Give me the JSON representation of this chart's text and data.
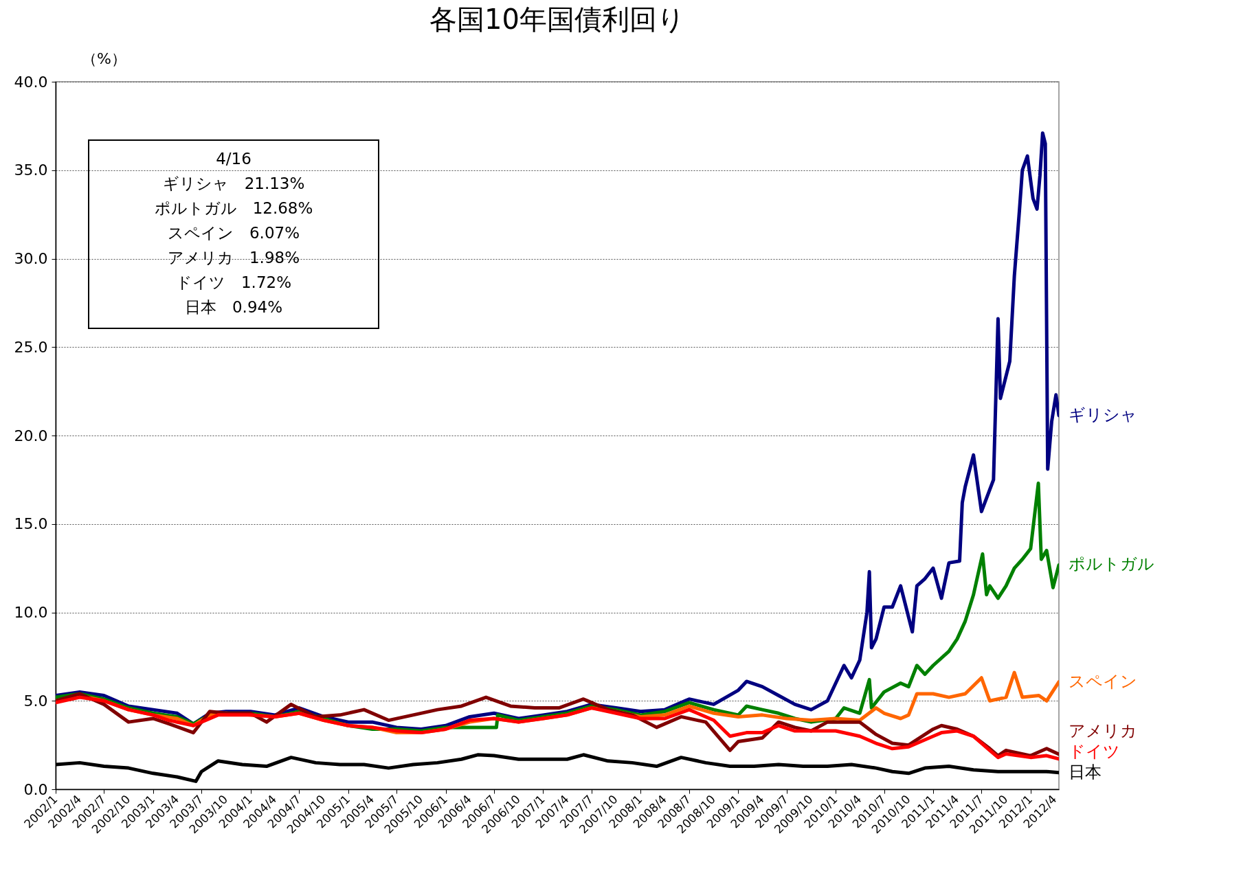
{
  "chart_data": {
    "type": "line",
    "title": "各国10年国債利回り",
    "ylabel": "（%）",
    "xlim": [
      "2002-01-01",
      "2012-04-16"
    ],
    "xticks": [
      {
        "value": "2002-01",
        "label": "2002/1"
      },
      {
        "value": "2002-04",
        "label": "2002/4"
      },
      {
        "value": "2002-07",
        "label": "2002/7"
      },
      {
        "value": "2002-10",
        "label": "2002/10"
      },
      {
        "value": "2003-01",
        "label": "2003/1"
      },
      {
        "value": "2003-04",
        "label": "2003/4"
      },
      {
        "value": "2003-07",
        "label": "2003/7"
      },
      {
        "value": "2003-10",
        "label": "2003/10"
      },
      {
        "value": "2004-01",
        "label": "2004/1"
      },
      {
        "value": "2004-04",
        "label": "2004/4"
      },
      {
        "value": "2004-07",
        "label": "2004/7"
      },
      {
        "value": "2004-10",
        "label": "2004/10"
      },
      {
        "value": "2005-01",
        "label": "2005/1"
      },
      {
        "value": "2005-04",
        "label": "2005/4"
      },
      {
        "value": "2005-07",
        "label": "2005/7"
      },
      {
        "value": "2005-10",
        "label": "2005/10"
      },
      {
        "value": "2006-01",
        "label": "2006/1"
      },
      {
        "value": "2006-04",
        "label": "2006/4"
      },
      {
        "value": "2006-07",
        "label": "2006/7"
      },
      {
        "value": "2006-10",
        "label": "2006/10"
      },
      {
        "value": "2007-01",
        "label": "2007/1"
      },
      {
        "value": "2007-04",
        "label": "2007/4"
      },
      {
        "value": "2007-07",
        "label": "2007/7"
      },
      {
        "value": "2007-10",
        "label": "2007/10"
      },
      {
        "value": "2008-01",
        "label": "2008/1"
      },
      {
        "value": "2008-04",
        "label": "2008/4"
      },
      {
        "value": "2008-07",
        "label": "2008/7"
      },
      {
        "value": "2008-10",
        "label": "2008/10"
      },
      {
        "value": "2009-01",
        "label": "2009/1"
      },
      {
        "value": "2009-04",
        "label": "2009/4"
      },
      {
        "value": "2009-07",
        "label": "2009/7"
      },
      {
        "value": "2009-10",
        "label": "2009/10"
      },
      {
        "value": "2010-01",
        "label": "2010/1"
      },
      {
        "value": "2010-04",
        "label": "2010/4"
      },
      {
        "value": "2010-07",
        "label": "2010/7"
      },
      {
        "value": "2010-10",
        "label": "2010/10"
      },
      {
        "value": "2011-01",
        "label": "2011/1"
      },
      {
        "value": "2011-04",
        "label": "2011/4"
      },
      {
        "value": "2011-07",
        "label": "2011/7"
      },
      {
        "value": "2011-10",
        "label": "2011/10"
      },
      {
        "value": "2012-01",
        "label": "2012/1"
      },
      {
        "value": "2012-04",
        "label": "2012/4"
      }
    ],
    "ylim": [
      0,
      40
    ],
    "yticks": [
      {
        "value": 0,
        "label": "0.0"
      },
      {
        "value": 5,
        "label": "5.0"
      },
      {
        "value": 10,
        "label": "10.0"
      },
      {
        "value": 15,
        "label": "15.0"
      },
      {
        "value": 20,
        "label": "20.0"
      },
      {
        "value": 25,
        "label": "25.0"
      },
      {
        "value": 30,
        "label": "30.0"
      },
      {
        "value": 35,
        "label": "35.0"
      },
      {
        "value": 40,
        "label": "40.0"
      }
    ],
    "grid": "y",
    "annotations": [
      "4/16",
      "ギリシャ　21.13%",
      "ポルトガル　12.68%",
      "スペイン　6.07%",
      "アメリカ　1.98%",
      "ドイツ　1.72%",
      "日本　0.94%"
    ],
    "series": [
      {
        "name": "ギリシャ",
        "color": "#000080",
        "x": [
          "2002-01",
          "2002-04",
          "2002-07",
          "2002-10",
          "2003-01",
          "2003-04",
          "2003-06",
          "2003-08",
          "2003-10",
          "2004-01",
          "2004-04",
          "2004-07",
          "2004-10",
          "2005-01",
          "2005-04",
          "2005-07",
          "2005-10",
          "2006-01",
          "2006-04",
          "2006-07",
          "2006-10",
          "2007-01",
          "2007-04",
          "2007-07",
          "2007-10",
          "2008-01",
          "2008-04",
          "2008-07",
          "2008-10",
          "2009-01",
          "2009-02",
          "2009-04",
          "2009-06",
          "2009-08",
          "2009-10",
          "2009-12",
          "2010-01",
          "2010-02",
          "2010-03",
          "2010-04",
          "2010-04-28",
          "2010-05-07",
          "2010-05-15",
          "2010-06",
          "2010-07",
          "2010-08",
          "2010-09",
          "2010-10-15",
          "2010-11",
          "2010-12",
          "2011-01",
          "2011-02",
          "2011-03",
          "2011-04-10",
          "2011-04-20",
          "2011-05",
          "2011-06",
          "2011-07",
          "2011-08-15",
          "2011-09",
          "2011-09-10",
          "2011-10-15",
          "2011-11",
          "2011-11-20",
          "2011-12",
          "2011-12-20",
          "2012-01-10",
          "2012-01-25",
          "2012-02-05",
          "2012-02-15",
          "2012-02-25",
          "2012-03-05",
          "2012-03-20",
          "2012-04-05",
          "2012-04-16"
        ],
        "values": [
          5.3,
          5.5,
          5.3,
          4.7,
          4.5,
          4.3,
          3.7,
          4.3,
          4.4,
          4.4,
          4.2,
          4.6,
          4.1,
          3.8,
          3.8,
          3.5,
          3.4,
          3.6,
          4.1,
          4.3,
          4.0,
          4.2,
          4.4,
          4.8,
          4.6,
          4.4,
          4.5,
          5.1,
          4.8,
          5.6,
          6.1,
          5.8,
          5.3,
          4.8,
          4.5,
          5.0,
          6.0,
          7.0,
          6.3,
          7.3,
          10.0,
          12.3,
          8.0,
          8.5,
          10.3,
          10.3,
          11.5,
          8.9,
          11.5,
          11.9,
          12.5,
          10.8,
          12.8,
          12.9,
          16.2,
          17.1,
          18.9,
          15.7,
          17.5,
          26.6,
          22.1,
          24.2,
          29.0,
          32.7,
          35.0,
          35.8,
          33.4,
          32.8,
          34.7,
          37.1,
          36.5,
          18.1,
          20.8,
          22.3,
          21.13
        ]
      },
      {
        "name": "ポルトガル",
        "color": "#008000",
        "x": [
          "2002-01",
          "2002-04",
          "2002-07",
          "2002-10",
          "2003-01",
          "2003-04",
          "2003-06",
          "2003-08",
          "2003-10",
          "2004-01",
          "2004-04",
          "2004-07",
          "2004-10",
          "2005-01",
          "2005-04",
          "2005-07",
          "2005-10",
          "2006-01",
          "2006-04",
          "2006-07-10",
          "2006-07-15",
          "2006-10",
          "2007-01",
          "2007-04",
          "2007-07",
          "2007-10",
          "2008-01",
          "2008-04",
          "2008-07",
          "2008-10",
          "2009-01",
          "2009-02",
          "2009-04",
          "2009-06",
          "2009-08",
          "2009-10",
          "2010-01",
          "2010-02",
          "2010-04",
          "2010-05-07",
          "2010-05-15",
          "2010-07",
          "2010-09",
          "2010-10",
          "2010-11",
          "2010-12",
          "2011-01",
          "2011-03",
          "2011-04",
          "2011-05",
          "2011-06",
          "2011-07-05",
          "2011-07-20",
          "2011-08",
          "2011-09",
          "2011-10",
          "2011-11",
          "2011-12",
          "2012-01",
          "2012-01-30",
          "2012-02-10",
          "2012-03",
          "2012-03-25",
          "2012-04-16"
        ],
        "values": [
          5.2,
          5.4,
          5.1,
          4.6,
          4.3,
          4.1,
          3.7,
          4.2,
          4.3,
          4.3,
          4.1,
          4.4,
          4.0,
          3.6,
          3.4,
          3.4,
          3.3,
          3.5,
          3.5,
          3.5,
          4.2,
          3.9,
          4.1,
          4.3,
          4.7,
          4.5,
          4.2,
          4.4,
          4.9,
          4.5,
          4.2,
          4.7,
          4.5,
          4.3,
          4.0,
          3.8,
          4.0,
          4.6,
          4.3,
          6.2,
          4.6,
          5.5,
          6.0,
          5.8,
          7.0,
          6.5,
          7.0,
          7.8,
          8.5,
          9.5,
          11.0,
          13.3,
          11.0,
          11.5,
          10.8,
          11.5,
          12.5,
          13.0,
          13.6,
          17.3,
          13.0,
          13.5,
          11.4,
          12.68
        ]
      },
      {
        "name": "スペイン",
        "color": "#ff6600",
        "x": [
          "2002-01",
          "2002-04",
          "2002-07",
          "2002-10",
          "2003-01",
          "2003-04",
          "2003-06",
          "2003-08",
          "2003-10",
          "2004-01",
          "2004-04",
          "2004-07",
          "2004-10",
          "2005-01",
          "2005-04",
          "2005-07",
          "2005-10",
          "2006-01",
          "2006-04",
          "2006-07",
          "2006-10",
          "2007-01",
          "2007-04",
          "2007-07",
          "2007-10",
          "2008-01",
          "2008-04",
          "2008-07",
          "2008-10",
          "2009-01",
          "2009-04",
          "2009-07",
          "2009-10",
          "2010-01",
          "2010-04",
          "2010-06",
          "2010-07",
          "2010-09",
          "2010-10",
          "2010-11",
          "2011-01",
          "2011-03",
          "2011-05",
          "2011-07",
          "2011-08",
          "2011-10",
          "2011-11",
          "2011-12",
          "2012-02",
          "2012-03",
          "2012-04-16"
        ],
        "values": [
          5.0,
          5.3,
          5.0,
          4.5,
          4.2,
          4.0,
          3.6,
          4.2,
          4.3,
          4.2,
          4.1,
          4.3,
          3.9,
          3.6,
          3.5,
          3.2,
          3.2,
          3.4,
          3.8,
          4.0,
          3.8,
          4.0,
          4.2,
          4.6,
          4.4,
          4.1,
          4.2,
          4.7,
          4.3,
          4.1,
          4.2,
          4.0,
          3.9,
          4.0,
          3.9,
          4.6,
          4.3,
          4.0,
          4.2,
          5.4,
          5.4,
          5.2,
          5.4,
          6.3,
          5.0,
          5.2,
          6.6,
          5.2,
          5.3,
          5.0,
          6.07
        ]
      },
      {
        "name": "アメリカ",
        "color": "#800000",
        "x": [
          "2002-01",
          "2002-04",
          "2002-07",
          "2002-10",
          "2003-01",
          "2003-03",
          "2003-06",
          "2003-08",
          "2003-10",
          "2004-01",
          "2004-03",
          "2004-06",
          "2004-09",
          "2004-12",
          "2005-03",
          "2005-06",
          "2005-09",
          "2005-12",
          "2006-03",
          "2006-06",
          "2006-09",
          "2006-12",
          "2007-03",
          "2007-06",
          "2007-09",
          "2007-12",
          "2008-03",
          "2008-06",
          "2008-09",
          "2008-12",
          "2009-01",
          "2009-04",
          "2009-06",
          "2009-08",
          "2009-10",
          "2009-12",
          "2010-04",
          "2010-06",
          "2010-08",
          "2010-10",
          "2011-01",
          "2011-02",
          "2011-04",
          "2011-06",
          "2011-08",
          "2011-09",
          "2011-10",
          "2012-01",
          "2012-03",
          "2012-04-16"
        ],
        "values": [
          5.0,
          5.4,
          4.8,
          3.8,
          4.0,
          3.7,
          3.2,
          4.4,
          4.3,
          4.3,
          3.8,
          4.8,
          4.1,
          4.2,
          4.5,
          3.9,
          4.2,
          4.5,
          4.7,
          5.2,
          4.7,
          4.6,
          4.6,
          5.1,
          4.5,
          4.2,
          3.5,
          4.1,
          3.8,
          2.2,
          2.7,
          2.9,
          3.8,
          3.5,
          3.3,
          3.8,
          3.8,
          3.1,
          2.6,
          2.5,
          3.4,
          3.6,
          3.4,
          3.0,
          2.3,
          1.9,
          2.2,
          1.9,
          2.3,
          1.98
        ]
      },
      {
        "name": "ドイツ",
        "color": "#ff0000",
        "x": [
          "2002-01",
          "2002-04",
          "2002-07",
          "2002-10",
          "2003-01",
          "2003-03",
          "2003-06",
          "2003-09",
          "2004-01",
          "2004-04",
          "2004-07",
          "2004-10",
          "2005-01",
          "2005-04",
          "2005-07",
          "2005-10",
          "2006-01",
          "2006-04",
          "2006-07",
          "2006-10",
          "2007-01",
          "2007-04",
          "2007-07",
          "2007-10",
          "2008-01",
          "2008-04",
          "2008-07",
          "2008-10",
          "2008-12",
          "2009-02",
          "2009-04",
          "2009-06",
          "2009-08",
          "2009-10",
          "2010-01",
          "2010-04",
          "2010-06",
          "2010-08",
          "2010-10",
          "2011-01",
          "2011-02",
          "2011-04",
          "2011-06",
          "2011-08",
          "2011-09",
          "2011-10",
          "2012-01",
          "2012-03",
          "2012-04-16"
        ],
        "values": [
          4.9,
          5.2,
          5.0,
          4.5,
          4.2,
          3.9,
          3.6,
          4.2,
          4.2,
          4.1,
          4.3,
          3.9,
          3.6,
          3.5,
          3.3,
          3.2,
          3.4,
          3.9,
          4.0,
          3.8,
          4.0,
          4.2,
          4.6,
          4.3,
          4.0,
          4.0,
          4.5,
          3.9,
          3.0,
          3.2,
          3.2,
          3.6,
          3.3,
          3.3,
          3.3,
          3.0,
          2.6,
          2.3,
          2.4,
          3.0,
          3.2,
          3.3,
          3.0,
          2.2,
          1.8,
          2.0,
          1.8,
          1.9,
          1.72
        ]
      },
      {
        "name": "日本",
        "color": "#000000",
        "x": [
          "2002-01",
          "2002-04",
          "2002-07",
          "2002-10",
          "2003-01",
          "2003-04",
          "2003-06-10",
          "2003-07",
          "2003-09",
          "2003-12",
          "2004-03",
          "2004-06",
          "2004-09",
          "2004-12",
          "2005-03",
          "2005-06",
          "2005-09",
          "2005-12",
          "2006-03",
          "2006-05",
          "2006-07",
          "2006-10",
          "2007-01",
          "2007-04",
          "2007-06",
          "2007-09",
          "2007-12",
          "2008-03",
          "2008-06",
          "2008-09",
          "2008-12",
          "2009-03",
          "2009-06",
          "2009-09",
          "2009-12",
          "2010-03",
          "2010-06",
          "2010-08",
          "2010-10",
          "2010-12",
          "2011-03",
          "2011-06",
          "2011-09",
          "2011-12",
          "2012-03",
          "2012-04-16"
        ],
        "values": [
          1.4,
          1.5,
          1.3,
          1.2,
          0.9,
          0.7,
          0.45,
          1.0,
          1.6,
          1.4,
          1.3,
          1.8,
          1.5,
          1.4,
          1.4,
          1.2,
          1.4,
          1.5,
          1.7,
          1.95,
          1.9,
          1.7,
          1.7,
          1.7,
          1.95,
          1.6,
          1.5,
          1.3,
          1.8,
          1.5,
          1.3,
          1.3,
          1.4,
          1.3,
          1.3,
          1.4,
          1.2,
          1.0,
          0.9,
          1.2,
          1.3,
          1.1,
          1.0,
          1.0,
          1.0,
          0.94
        ]
      }
    ]
  }
}
